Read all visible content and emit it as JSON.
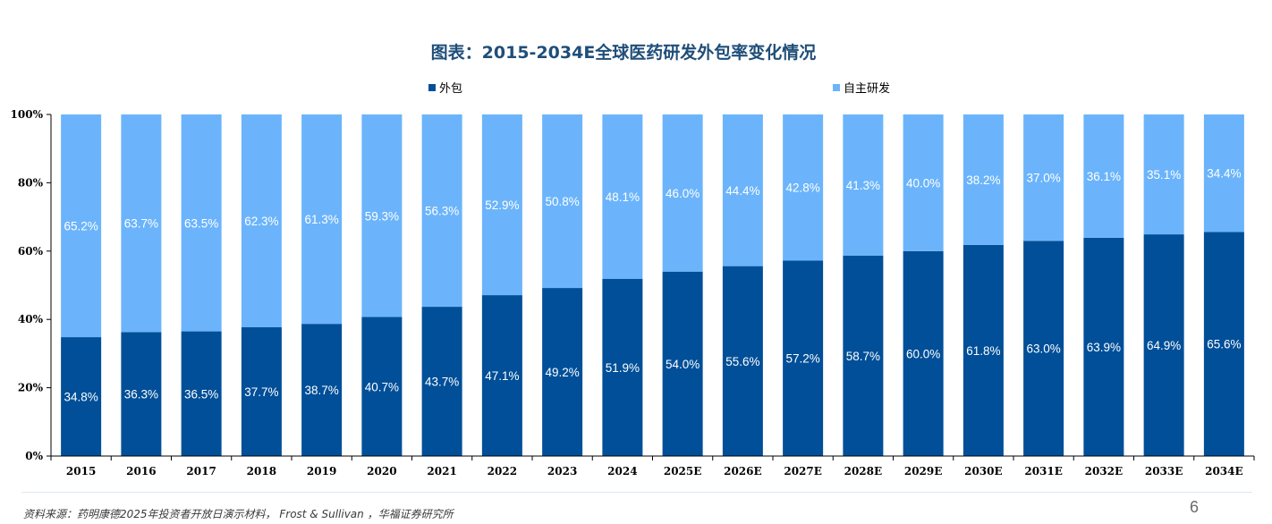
{
  "page_number": "6",
  "source_text": "资料来源：药明康德2025年投资者开放日演示材料， Frost & Sullivan ，华福证券研究所",
  "chart_data": {
    "type": "bar",
    "stacked": true,
    "title": "图表：2015-2034E全球医药研发外包率变化情况",
    "categories": [
      "2015",
      "2016",
      "2017",
      "2018",
      "2019",
      "2020",
      "2021",
      "2022",
      "2023",
      "2024",
      "2025E",
      "2026E",
      "2027E",
      "2028E",
      "2029E",
      "2030E",
      "2031E",
      "2032E",
      "2033E",
      "2034E"
    ],
    "series": [
      {
        "name": "外包",
        "color": "#004f98",
        "values": [
          34.8,
          36.3,
          36.5,
          37.7,
          38.7,
          40.7,
          43.7,
          47.1,
          49.2,
          51.9,
          54.0,
          55.6,
          57.2,
          58.7,
          60.0,
          61.8,
          63.0,
          63.9,
          64.9,
          65.6
        ],
        "labels": [
          "34.8%",
          "36.3%",
          "36.5%",
          "37.7%",
          "38.7%",
          "40.7%",
          "43.7%",
          "47.1%",
          "49.2%",
          "51.9%",
          "54.0%",
          "55.6%",
          "57.2%",
          "58.7%",
          "60.0%",
          "61.8%",
          "63.0%",
          "63.9%",
          "64.9%",
          "65.6%"
        ]
      },
      {
        "name": "自主研发",
        "color": "#6bb4fb",
        "values": [
          65.2,
          63.7,
          63.5,
          62.3,
          61.3,
          59.3,
          56.3,
          52.9,
          50.8,
          48.1,
          46.0,
          44.4,
          42.8,
          41.3,
          40.0,
          38.2,
          37.0,
          36.1,
          35.1,
          34.4
        ],
        "labels": [
          "65.2%",
          "63.7%",
          "63.5%",
          "62.3%",
          "61.3%",
          "59.3%",
          "56.3%",
          "52.9%",
          "50.8%",
          "48.1%",
          "46.0%",
          "44.4%",
          "42.8%",
          "41.3%",
          "40.0%",
          "38.2%",
          "37.0%",
          "36.1%",
          "35.1%",
          "34.4%"
        ]
      }
    ],
    "yticks": [
      "0%",
      "20%",
      "40%",
      "60%",
      "80%",
      "100%"
    ],
    "ylim": [
      0,
      100
    ],
    "grid": false,
    "legend_position": "top"
  }
}
